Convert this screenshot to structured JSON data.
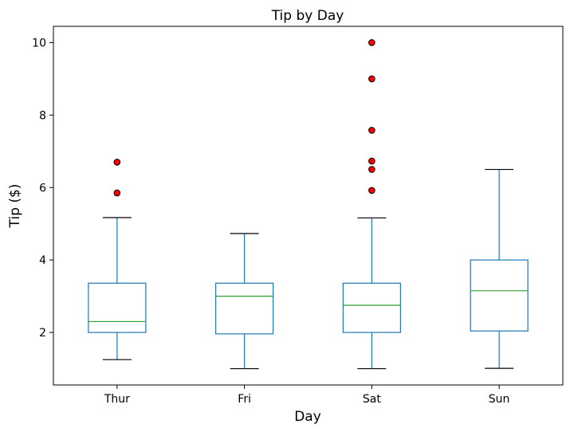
{
  "chart_data": {
    "type": "box",
    "title": "Tip by Day",
    "xlabel": "Day",
    "ylabel": "Tip ($)",
    "categories": [
      "Thur",
      "Fri",
      "Sat",
      "Sun"
    ],
    "ylim": [
      0.55,
      10.45
    ],
    "yticks": [
      2,
      4,
      6,
      8,
      10
    ],
    "grid": false,
    "colors": {
      "box": "#1f77b4",
      "median": "#2ca02c",
      "whisker_cap": "#000000",
      "outlier_fill": "#ff0000",
      "outlier_edge": "#000000"
    },
    "boxes": [
      {
        "category": "Thur",
        "whislo": 1.25,
        "q1": 2.0,
        "med": 2.3,
        "q3": 3.36,
        "whishi": 5.17,
        "fliers": [
          6.7,
          5.85
        ]
      },
      {
        "category": "Fri",
        "whislo": 1.0,
        "q1": 1.96,
        "med": 3.0,
        "q3": 3.36,
        "whishi": 4.73,
        "fliers": []
      },
      {
        "category": "Sat",
        "whislo": 1.0,
        "q1": 2.0,
        "med": 2.75,
        "q3": 3.36,
        "whishi": 5.16,
        "fliers": [
          10.0,
          9.0,
          7.58,
          6.73,
          6.5,
          5.92
        ]
      },
      {
        "category": "Sun",
        "whislo": 1.01,
        "q1": 2.04,
        "med": 3.15,
        "q3": 4.0,
        "whishi": 6.5,
        "fliers": []
      }
    ]
  }
}
